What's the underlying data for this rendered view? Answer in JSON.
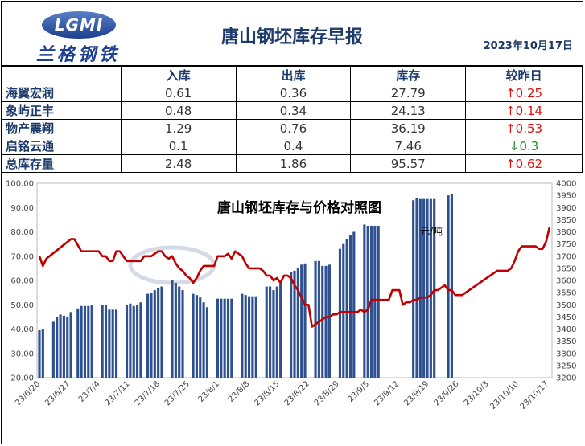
{
  "header": {
    "logo_letters": "LGMI",
    "logo_name": "兰格钢铁",
    "title": "唐山钢坯库存早报",
    "date": "2023年10月17日"
  },
  "table": {
    "columns": [
      "",
      "入库",
      "出库",
      "库存",
      "较昨日"
    ],
    "rows": [
      {
        "name": "海翼宏润",
        "in": "0.61",
        "out": "0.36",
        "stock": "27.79",
        "change": "0.25",
        "direction": "up"
      },
      {
        "name": "象屿正丰",
        "in": "0.48",
        "out": "0.34",
        "stock": "24.13",
        "change": "0.14",
        "direction": "up"
      },
      {
        "name": "物产震翔",
        "in": "1.29",
        "out": "0.76",
        "stock": "36.19",
        "change": "0.53",
        "direction": "up"
      },
      {
        "name": "启铭云通",
        "in": "0.1",
        "out": "0.4",
        "stock": "7.46",
        "change": "0.3",
        "direction": "down"
      },
      {
        "name": "总库存量",
        "in": "2.48",
        "out": "1.86",
        "stock": "95.57",
        "change": "0.62",
        "direction": "up"
      }
    ]
  },
  "colors": {
    "bar": "#2e5090",
    "line": "#c00000",
    "up": "#e01010",
    "down": "#1f8a2a"
  },
  "chart_data": {
    "type": "bar",
    "title": "唐山钢坯库存与价格对照图",
    "annotation": "元/吨",
    "xticks": [
      "23/6/20",
      "23/6/27",
      "23/7/4",
      "23/7/11",
      "23/7/18",
      "23/7/25",
      "23/8/1",
      "23/8/8",
      "23/8/15",
      "23/8/22",
      "23/8/29",
      "23/9/5",
      "23/9/12",
      "23/9/19",
      "23/9/26",
      "23/10/3",
      "23/10/10",
      "23/10/17"
    ],
    "y_left": {
      "ylim": [
        20,
        100
      ],
      "ticks": [
        "20.00",
        "30.00",
        "40.00",
        "50.00",
        "60.00",
        "70.00",
        "80.00",
        "90.00",
        "100.00"
      ]
    },
    "y_right": {
      "ylim": [
        3200,
        4000
      ],
      "ticks": [
        "3200",
        "3250",
        "3300",
        "3350",
        "3400",
        "3450",
        "3500",
        "3550",
        "3600",
        "3650",
        "3700",
        "3750",
        "3800",
        "3850",
        "3900",
        "3950",
        "4000"
      ]
    },
    "series": [
      {
        "type": "bar",
        "axis": "left",
        "values": [
          [
            0,
            39.5
          ],
          [
            1,
            40
          ],
          [
            4,
            43
          ],
          [
            5,
            45
          ],
          [
            6,
            46
          ],
          [
            7,
            45.5
          ],
          [
            8,
            45
          ],
          [
            9,
            47
          ],
          [
            11,
            48.5
          ],
          [
            12,
            49.5
          ],
          [
            13,
            49.5
          ],
          [
            14,
            49.5
          ],
          [
            15,
            50
          ],
          [
            18,
            50
          ],
          [
            19,
            50
          ],
          [
            20,
            48
          ],
          [
            21,
            48
          ],
          [
            22,
            48
          ],
          [
            25,
            50
          ],
          [
            26,
            50.5
          ],
          [
            27,
            49.5
          ],
          [
            28,
            50
          ],
          [
            29,
            51
          ],
          [
            31,
            54.5
          ],
          [
            32,
            55
          ],
          [
            33,
            56
          ],
          [
            34,
            57
          ],
          [
            35,
            57.5
          ],
          [
            38,
            60
          ],
          [
            39,
            59
          ],
          [
            40,
            57.5
          ],
          [
            41,
            56
          ],
          [
            44,
            54.5
          ],
          [
            45,
            54
          ],
          [
            46,
            53
          ],
          [
            47,
            51
          ],
          [
            48,
            49
          ],
          [
            51,
            52.5
          ],
          [
            52,
            52.5
          ],
          [
            53,
            52.5
          ],
          [
            54,
            52.5
          ],
          [
            55,
            52.5
          ],
          [
            58,
            54.5
          ],
          [
            59,
            54
          ],
          [
            60,
            53.5
          ],
          [
            61,
            53.5
          ],
          [
            62,
            53.5
          ],
          [
            65,
            57.5
          ],
          [
            66,
            57.5
          ],
          [
            67,
            56
          ],
          [
            68,
            57.5
          ],
          [
            69,
            58.5
          ],
          [
            72,
            63.5
          ],
          [
            73,
            64
          ],
          [
            74,
            65
          ],
          [
            75,
            66.5
          ],
          [
            76,
            67
          ],
          [
            79,
            68
          ],
          [
            80,
            68
          ],
          [
            81,
            66
          ],
          [
            82,
            66
          ],
          [
            83,
            66.5
          ],
          [
            86,
            73
          ],
          [
            87,
            75
          ],
          [
            88,
            77
          ],
          [
            89,
            78.5
          ],
          [
            90,
            80
          ],
          [
            93,
            83
          ],
          [
            94,
            82.5
          ],
          [
            95,
            82.5
          ],
          [
            96,
            82.5
          ],
          [
            97,
            82.5
          ],
          [
            107,
            93
          ],
          [
            108,
            94
          ],
          [
            109,
            93.5
          ],
          [
            110,
            93.5
          ],
          [
            111,
            93.5
          ],
          [
            112,
            93.5
          ],
          [
            113,
            93.5
          ],
          [
            117,
            95
          ],
          [
            118,
            95.57
          ]
        ]
      },
      {
        "type": "line",
        "axis": "right",
        "values": [
          [
            0,
            3700
          ],
          [
            1,
            3660
          ],
          [
            2,
            3690
          ],
          [
            9,
            3770
          ],
          [
            10,
            3770
          ],
          [
            12,
            3720
          ],
          [
            15,
            3720
          ],
          [
            17,
            3720
          ],
          [
            18,
            3700
          ],
          [
            19,
            3700
          ],
          [
            20,
            3680
          ],
          [
            21,
            3680
          ],
          [
            22,
            3720
          ],
          [
            23,
            3720
          ],
          [
            24,
            3700
          ],
          [
            25,
            3680
          ],
          [
            26,
            3680
          ],
          [
            27,
            3680
          ],
          [
            28,
            3680
          ],
          [
            29,
            3680
          ],
          [
            30,
            3700
          ],
          [
            31,
            3700
          ],
          [
            32,
            3700
          ],
          [
            33,
            3710
          ],
          [
            34,
            3720
          ],
          [
            35,
            3720
          ],
          [
            36,
            3700
          ],
          [
            37,
            3690
          ],
          [
            38,
            3700
          ],
          [
            39,
            3670
          ],
          [
            40,
            3650
          ],
          [
            41,
            3640
          ],
          [
            42,
            3620
          ],
          [
            43,
            3610
          ],
          [
            44,
            3590
          ],
          [
            45,
            3610
          ],
          [
            46,
            3640
          ],
          [
            47,
            3660
          ],
          [
            48,
            3660
          ],
          [
            49,
            3660
          ],
          [
            50,
            3660
          ],
          [
            51,
            3700
          ],
          [
            52,
            3700
          ],
          [
            53,
            3700
          ],
          [
            54,
            3710
          ],
          [
            55,
            3690
          ],
          [
            56,
            3720
          ],
          [
            57,
            3710
          ],
          [
            58,
            3700
          ],
          [
            59,
            3670
          ],
          [
            60,
            3650
          ],
          [
            61,
            3650
          ],
          [
            62,
            3650
          ],
          [
            63,
            3650
          ],
          [
            64,
            3640
          ],
          [
            65,
            3620
          ],
          [
            66,
            3620
          ],
          [
            67,
            3600
          ],
          [
            68,
            3610
          ],
          [
            69,
            3590
          ],
          [
            70,
            3620
          ],
          [
            71,
            3620
          ],
          [
            72,
            3610
          ],
          [
            73,
            3580
          ],
          [
            74,
            3560
          ],
          [
            75,
            3530
          ],
          [
            76,
            3500
          ],
          [
            77,
            3500
          ],
          [
            78,
            3410
          ],
          [
            79,
            3420
          ],
          [
            80,
            3430
          ],
          [
            81,
            3440
          ],
          [
            82,
            3450
          ],
          [
            83,
            3450
          ],
          [
            84,
            3460
          ],
          [
            85,
            3460
          ],
          [
            86,
            3470
          ],
          [
            87,
            3470
          ],
          [
            88,
            3470
          ],
          [
            89,
            3470
          ],
          [
            90,
            3470
          ],
          [
            91,
            3470
          ],
          [
            92,
            3480
          ],
          [
            93,
            3470
          ],
          [
            94,
            3480
          ],
          [
            95,
            3520
          ],
          [
            96,
            3520
          ],
          [
            97,
            3520
          ],
          [
            98,
            3520
          ],
          [
            99,
            3520
          ],
          [
            100,
            3520
          ],
          [
            101,
            3560
          ],
          [
            102,
            3560
          ],
          [
            103,
            3560
          ],
          [
            104,
            3500
          ],
          [
            105,
            3510
          ],
          [
            106,
            3510
          ],
          [
            107,
            3520
          ],
          [
            108,
            3520
          ],
          [
            109,
            3530
          ],
          [
            110,
            3530
          ],
          [
            111,
            3530
          ],
          [
            112,
            3540
          ],
          [
            113,
            3560
          ],
          [
            114,
            3560
          ],
          [
            115,
            3570
          ],
          [
            116,
            3580
          ],
          [
            117,
            3560
          ],
          [
            118,
            3560
          ],
          [
            119,
            3540
          ],
          [
            120,
            3540
          ],
          [
            121,
            3540
          ],
          [
            122,
            3550
          ],
          [
            123,
            3560
          ],
          [
            125,
            3580
          ],
          [
            127,
            3600
          ],
          [
            129,
            3620
          ],
          [
            131,
            3640
          ],
          [
            133,
            3640
          ],
          [
            134,
            3640
          ],
          [
            135,
            3650
          ],
          [
            136,
            3680
          ],
          [
            137,
            3720
          ],
          [
            138,
            3740
          ],
          [
            139,
            3740
          ],
          [
            140,
            3740
          ],
          [
            141,
            3740
          ],
          [
            142,
            3740
          ],
          [
            143,
            3730
          ],
          [
            144,
            3730
          ],
          [
            145,
            3760
          ],
          [
            146,
            3820
          ]
        ]
      }
    ]
  }
}
